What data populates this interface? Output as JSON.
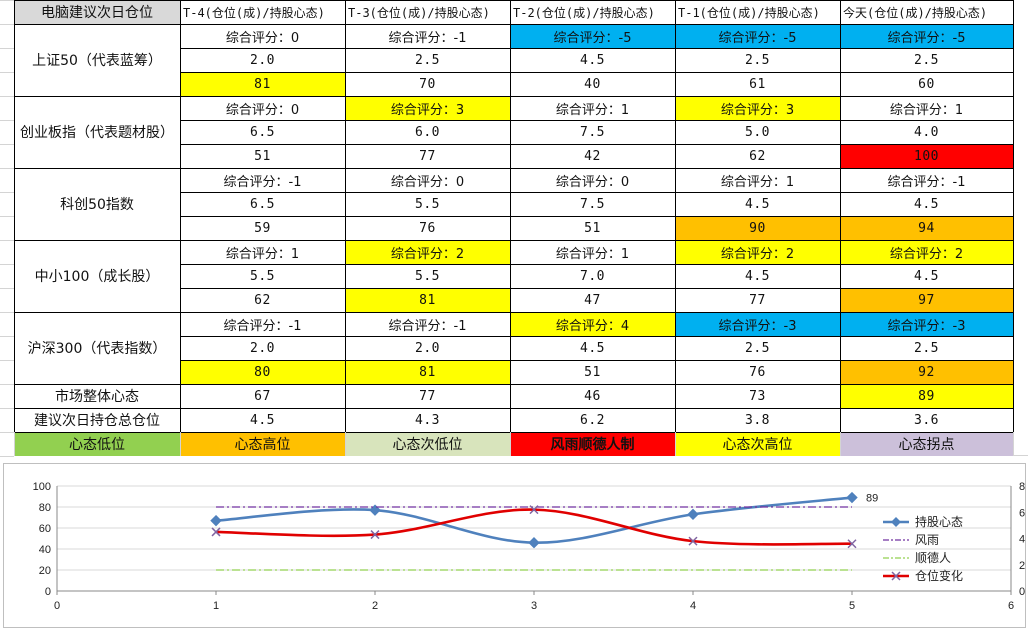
{
  "colors": {
    "yellow": "#ffff00",
    "blue": "#00b0f0",
    "red": "#ff0000",
    "orange": "#ffc000",
    "green": "#92d050",
    "light_green": "#d8e4bc",
    "lavender": "#ccc0da",
    "header_gray": "#d9d9d9"
  },
  "headers": [
    "电脑建议次日仓位",
    "T-4(仓位(成)/持股心态)",
    "T-3(仓位(成)/持股心态)",
    "T-2(仓位(成)/持股心态)",
    "T-1(仓位(成)/持股心态)",
    "今天(仓位(成)/持股心态)"
  ],
  "indices": [
    {
      "name": "上证50（代表蓝筹）",
      "scores": [
        {
          "text": "综合评分：0",
          "color": ""
        },
        {
          "text": "综合评分：-1",
          "color": ""
        },
        {
          "text": "综合评分：-5",
          "color": "blue"
        },
        {
          "text": "综合评分：-5",
          "color": "blue"
        },
        {
          "text": "综合评分：-5",
          "color": "blue"
        }
      ],
      "positions": [
        "2.0",
        "2.5",
        "4.5",
        "2.5",
        "2.5"
      ],
      "moods": [
        {
          "text": "81",
          "color": "yellow"
        },
        {
          "text": "70",
          "color": ""
        },
        {
          "text": "40",
          "color": ""
        },
        {
          "text": "61",
          "color": ""
        },
        {
          "text": "60",
          "color": ""
        }
      ]
    },
    {
      "name": "创业板指（代表题材股）",
      "scores": [
        {
          "text": "综合评分：0",
          "color": ""
        },
        {
          "text": "综合评分：3",
          "color": "yellow"
        },
        {
          "text": "综合评分：1",
          "color": ""
        },
        {
          "text": "综合评分：3",
          "color": "yellow"
        },
        {
          "text": "综合评分：1",
          "color": ""
        }
      ],
      "positions": [
        "6.5",
        "6.0",
        "7.5",
        "5.0",
        "4.0"
      ],
      "moods": [
        {
          "text": "51",
          "color": ""
        },
        {
          "text": "77",
          "color": ""
        },
        {
          "text": "42",
          "color": ""
        },
        {
          "text": "62",
          "color": ""
        },
        {
          "text": "100",
          "color": "red"
        }
      ]
    },
    {
      "name": "科创50指数",
      "scores": [
        {
          "text": "综合评分：-1",
          "color": ""
        },
        {
          "text": "综合评分：0",
          "color": ""
        },
        {
          "text": "综合评分：0",
          "color": ""
        },
        {
          "text": "综合评分：1",
          "color": ""
        },
        {
          "text": "综合评分：-1",
          "color": ""
        }
      ],
      "positions": [
        "6.5",
        "5.5",
        "7.5",
        "4.5",
        "4.5"
      ],
      "moods": [
        {
          "text": "59",
          "color": ""
        },
        {
          "text": "76",
          "color": ""
        },
        {
          "text": "51",
          "color": ""
        },
        {
          "text": "90",
          "color": "orange"
        },
        {
          "text": "94",
          "color": "orange"
        }
      ]
    },
    {
      "name": "中小100（成长股）",
      "scores": [
        {
          "text": "综合评分：1",
          "color": ""
        },
        {
          "text": "综合评分：2",
          "color": "yellow"
        },
        {
          "text": "综合评分：1",
          "color": ""
        },
        {
          "text": "综合评分：2",
          "color": "yellow"
        },
        {
          "text": "综合评分：2",
          "color": "yellow"
        }
      ],
      "positions": [
        "5.5",
        "5.5",
        "7.0",
        "4.5",
        "4.5"
      ],
      "moods": [
        {
          "text": "62",
          "color": ""
        },
        {
          "text": "81",
          "color": "yellow"
        },
        {
          "text": "47",
          "color": ""
        },
        {
          "text": "77",
          "color": ""
        },
        {
          "text": "97",
          "color": "orange"
        }
      ]
    },
    {
      "name": "沪深300（代表指数）",
      "scores": [
        {
          "text": "综合评分：-1",
          "color": ""
        },
        {
          "text": "综合评分：-1",
          "color": ""
        },
        {
          "text": "综合评分：4",
          "color": "yellow"
        },
        {
          "text": "综合评分：-3",
          "color": "blue"
        },
        {
          "text": "综合评分：-3",
          "color": "blue"
        }
      ],
      "positions": [
        "2.0",
        "2.0",
        "4.5",
        "2.5",
        "2.5"
      ],
      "moods": [
        {
          "text": "80",
          "color": "yellow"
        },
        {
          "text": "81",
          "color": "yellow"
        },
        {
          "text": "51",
          "color": ""
        },
        {
          "text": "76",
          "color": ""
        },
        {
          "text": "92",
          "color": "orange"
        }
      ]
    }
  ],
  "market_row": {
    "label": "市场整体心态",
    "values": [
      {
        "text": "67",
        "color": ""
      },
      {
        "text": "77",
        "color": ""
      },
      {
        "text": "46",
        "color": ""
      },
      {
        "text": "73",
        "color": ""
      },
      {
        "text": "89",
        "color": "yellow"
      }
    ]
  },
  "position_row": {
    "label": "建议次日持仓总仓位",
    "values": [
      "4.5",
      "4.3",
      "6.2",
      "3.8",
      "3.6"
    ]
  },
  "legend_row": [
    {
      "text": "心态低位",
      "color": "green",
      "bold": false
    },
    {
      "text": "心态高位",
      "color": "orange",
      "bold": false
    },
    {
      "text": "心态次低位",
      "color": "light_green",
      "bold": false
    },
    {
      "text": "风雨顺德人制",
      "color": "red",
      "bold": true
    },
    {
      "text": "心态次高位",
      "color": "yellow",
      "bold": false
    },
    {
      "text": "心态拐点",
      "color": "lavender",
      "bold": false
    }
  ],
  "chart_data": {
    "type": "line",
    "x_ticks": [
      "0",
      "1",
      "2",
      "3",
      "4",
      "5",
      "6"
    ],
    "xlim": [
      0,
      6
    ],
    "ylim_left": [
      0,
      100
    ],
    "y_ticks_left": [
      "0",
      "20",
      "40",
      "60",
      "80",
      "100"
    ],
    "ylim_right": [
      0,
      8
    ],
    "y_ticks_right": [
      "0",
      "2",
      "4",
      "6",
      "8"
    ],
    "grid": true,
    "legend": "right",
    "series": [
      {
        "name": "持股心态",
        "axis": "left",
        "color": "#4f81bd",
        "x": [
          1,
          2,
          3,
          4,
          5
        ],
        "y": [
          67,
          77,
          46,
          73,
          89
        ],
        "marker": "diamond",
        "smooth": true
      },
      {
        "name": "风雨",
        "axis": "left",
        "color": "#7030a0",
        "x": [
          1,
          5
        ],
        "y": [
          80,
          80
        ],
        "style": "dashdot"
      },
      {
        "name": "顺德人",
        "axis": "left",
        "color": "#92d050",
        "x": [
          1,
          5
        ],
        "y": [
          20,
          20
        ],
        "style": "dashdot"
      },
      {
        "name": "仓位变化",
        "axis": "right",
        "color": "#e00000",
        "x": [
          1,
          2,
          3,
          4,
          5
        ],
        "y": [
          4.5,
          4.3,
          6.2,
          3.8,
          3.6
        ],
        "marker": "x",
        "smooth": true
      }
    ],
    "data_labels": [
      {
        "series": "持股心态",
        "x": 5,
        "text": "89"
      }
    ]
  }
}
